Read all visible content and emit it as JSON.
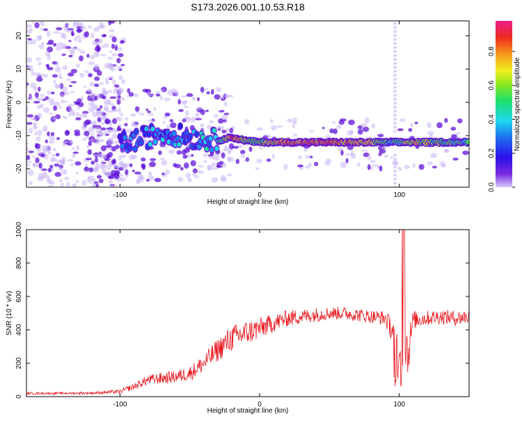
{
  "title": "S173.2026.001.10.53.R18",
  "colors": {
    "snr_line": "#e8181e",
    "ridge_strong": "#d8141e",
    "ridge_mid": "#28e05a",
    "ridge_low": "#28d8ee",
    "scatter": "#6014d8",
    "scatter_light": "#c6b0f6"
  },
  "chart_data": [
    {
      "type": "heatmap",
      "xlabel": "Height of straight line (km)",
      "ylabel": "Frequency (Hz)",
      "xlim": [
        -167,
        150
      ],
      "ylim": [
        -25.5,
        24.5
      ],
      "x_ticks": [
        -100,
        0,
        100
      ],
      "y_ticks": [
        -20,
        -10,
        0,
        10,
        20
      ],
      "colorbar": {
        "label": "Normalized spectral amplitude",
        "range": [
          0.0,
          0.98
        ],
        "ticks": [
          "0.0",
          "0.2",
          "0.4",
          "0.6",
          "0.8"
        ],
        "tick_values": [
          0.0,
          0.2,
          0.4,
          0.6,
          0.8
        ]
      },
      "ridge": [
        {
          "x": -100,
          "y": -12.5,
          "amp": 0.25
        },
        {
          "x": -85,
          "y": -11,
          "amp": 0.3
        },
        {
          "x": -70,
          "y": -9,
          "amp": 0.3
        },
        {
          "x": -50,
          "y": -10.5,
          "amp": 0.3
        },
        {
          "x": -30,
          "y": -11.5,
          "amp": 0.4
        },
        {
          "x": -20,
          "y": -10.5,
          "amp": 0.85
        },
        {
          "x": -10,
          "y": -11.5,
          "amp": 0.6
        },
        {
          "x": 0,
          "y": -12,
          "amp": 0.55
        },
        {
          "x": 20,
          "y": -12,
          "amp": 0.85
        },
        {
          "x": 50,
          "y": -12,
          "amp": 0.8
        },
        {
          "x": 80,
          "y": -12,
          "amp": 0.7
        },
        {
          "x": 95,
          "y": -12,
          "amp": 0.4
        },
        {
          "x": 110,
          "y": -12,
          "amp": 0.7
        },
        {
          "x": 130,
          "y": -12,
          "amp": 0.55
        },
        {
          "x": 150,
          "y": -12,
          "amp": 0.45
        }
      ]
    },
    {
      "type": "line",
      "xlabel": "Height of straight line (km)",
      "ylabel": "SNR (10 * v/v)",
      "xlim": [
        -167,
        150
      ],
      "ylim": [
        0,
        1000
      ],
      "x_ticks": [
        -100,
        0,
        100
      ],
      "y_ticks": [
        0,
        200,
        400,
        600,
        800,
        1000
      ],
      "series": [
        {
          "x": [
            -167,
            -140,
            -120,
            -100,
            -90,
            -80,
            -70,
            -60,
            -50,
            -40,
            -30,
            -20,
            -10,
            0,
            10,
            20,
            30,
            40,
            50,
            60,
            70,
            80,
            90,
            95,
            100,
            102,
            104,
            106,
            110,
            120,
            130,
            140,
            150
          ],
          "y": [
            20,
            20,
            22,
            30,
            60,
            100,
            110,
            120,
            140,
            200,
            280,
            350,
            380,
            410,
            440,
            470,
            480,
            490,
            500,
            500,
            490,
            480,
            470,
            400,
            200,
            120,
            400,
            250,
            460,
            470,
            480,
            470,
            480
          ],
          "spread": [
            14,
            14,
            16,
            24,
            40,
            60,
            70,
            75,
            90,
            110,
            140,
            160,
            150,
            130,
            110,
            100,
            90,
            85,
            80,
            80,
            80,
            80,
            90,
            150,
            300,
            420,
            400,
            300,
            110,
            90,
            90,
            90,
            90
          ]
        }
      ]
    }
  ]
}
